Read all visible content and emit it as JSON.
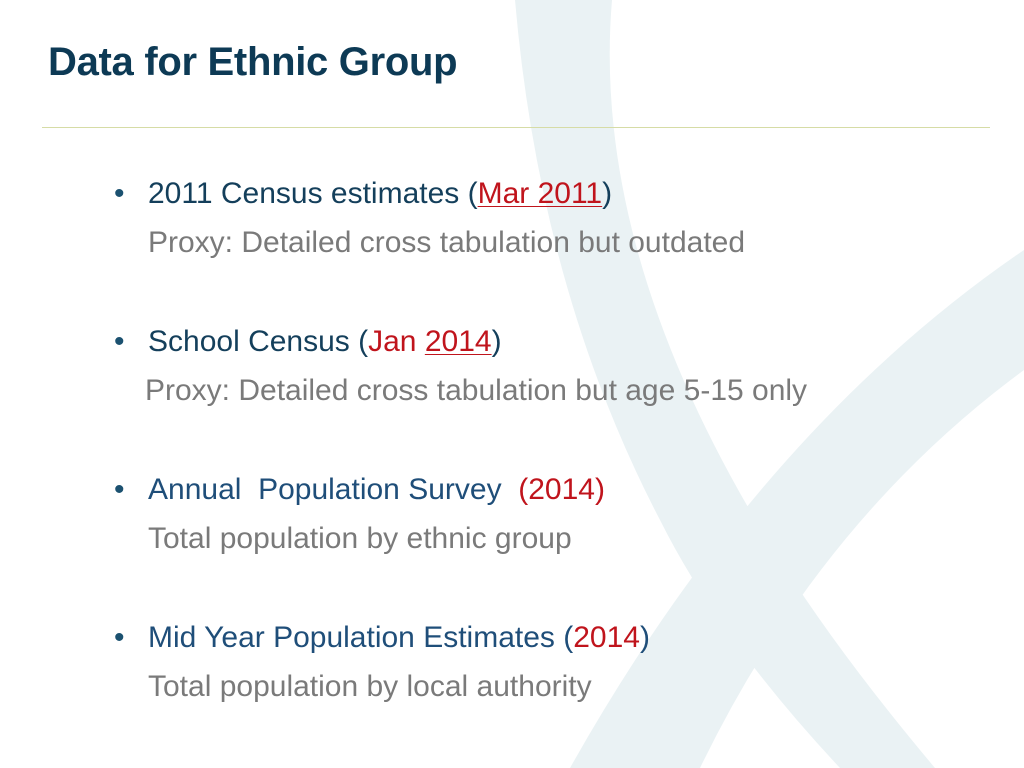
{
  "slide": {
    "title": "Data for Ethnic Group"
  },
  "bullets": [
    {
      "text": "2011 Census estimates (",
      "date": "Mar 2011",
      "close": ")",
      "detail": "Proxy: Detailed cross tabulation but outdated"
    },
    {
      "text": "School Census (",
      "month": "Jan",
      "year": "2014",
      "close": ")",
      "detail": "Proxy: Detailed cross tabulation but age 5-15 only"
    },
    {
      "text": "Annual  Population Survey ",
      "year": "(2014)",
      "detail": "Total population by ethnic group"
    },
    {
      "text": "Mid Year Population Estimates (",
      "year": "2014",
      "close": ")",
      "detail": "Total population by local authority"
    }
  ],
  "bullet_glyph": "•",
  "colors": {
    "title": "#0d3a55",
    "body": "#143f5b",
    "secondary": "#7a7a7a",
    "accent": "#c0141c",
    "divider": "#d6dca6",
    "watermark": "#e9f1f3"
  },
  "decoration": {
    "watermark_icon": "x-watermark-icon"
  }
}
